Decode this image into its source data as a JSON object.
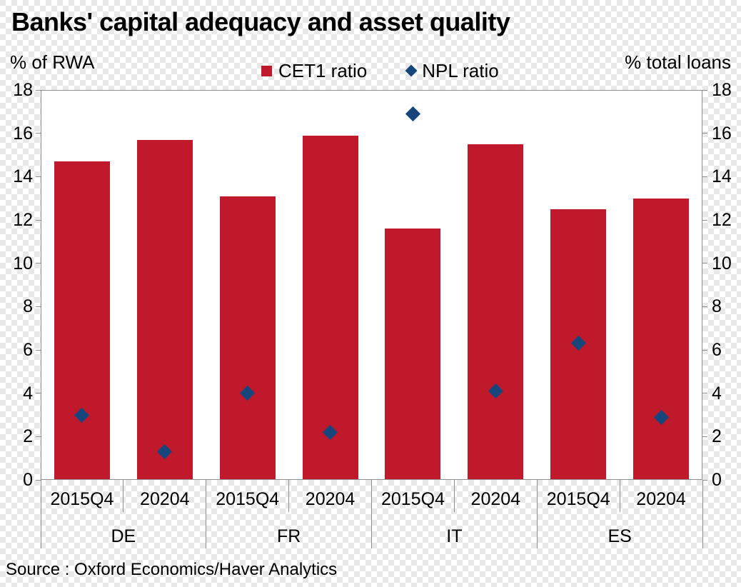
{
  "header": {
    "title": "Banks' capital adequacy and asset quality",
    "left_axis_caption": "% of RWA",
    "right_axis_caption": "% total loans"
  },
  "legend": [
    {
      "label": "CET1 ratio",
      "marker": "square-icon",
      "color": "#c1192c"
    },
    {
      "label": "NPL ratio",
      "marker": "diamond-icon",
      "color": "#17467c"
    }
  ],
  "footer": {
    "source": "Source : Oxford Economics/Haver Analytics"
  },
  "chart_data": {
    "type": "bar",
    "title": "Banks' capital adequacy and asset quality",
    "groups": [
      "DE",
      "FR",
      "IT",
      "ES"
    ],
    "categories": [
      "2015Q4",
      "20204",
      "2015Q4",
      "20204",
      "2015Q4",
      "20204",
      "2015Q4",
      "20204"
    ],
    "series": [
      {
        "name": "CET1 ratio",
        "type": "bar",
        "unit": "% of RWA",
        "color": "#c1192c",
        "values": [
          14.7,
          15.7,
          13.1,
          15.9,
          11.6,
          15.5,
          12.5,
          13.0
        ]
      },
      {
        "name": "NPL ratio",
        "type": "scatter",
        "marker": "diamond",
        "unit": "% total loans",
        "color": "#17467c",
        "values": [
          3.0,
          1.3,
          4.0,
          2.2,
          16.9,
          4.1,
          6.3,
          2.9
        ]
      }
    ],
    "y_axis": {
      "min": 0,
      "max": 18,
      "tick_step": 2,
      "ticks": [
        0,
        2,
        4,
        6,
        8,
        10,
        12,
        14,
        16,
        18
      ]
    },
    "grid": false,
    "legend_position": "top-center",
    "axis_color": "#8f8f8f"
  }
}
